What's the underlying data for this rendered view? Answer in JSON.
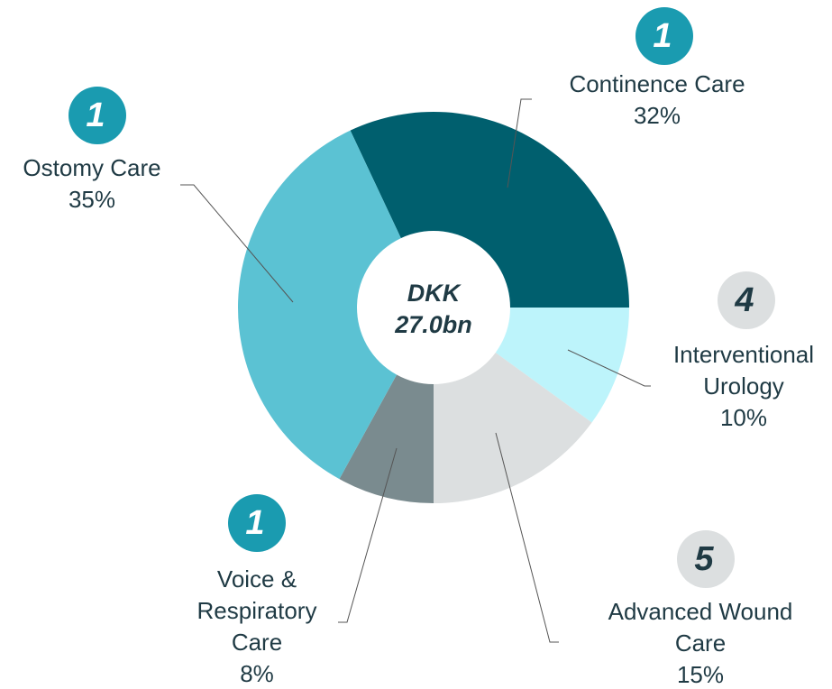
{
  "chart_data": {
    "type": "donut",
    "center_text": [
      "DKK",
      "27.0bn"
    ],
    "categories": [
      "Continence Care",
      "Interventional Urology",
      "Advanced Wound Care",
      "Voice & Respiratory Care",
      "Ostomy Care"
    ],
    "values": [
      32,
      10,
      15,
      8,
      35
    ],
    "value_labels": [
      "32%",
      "10%",
      "15%",
      "8%",
      "35%"
    ],
    "colors": [
      "#005f6e",
      "#bdf4fb",
      "#dcdfe0",
      "#7a8b8f",
      "#5bc2d3"
    ],
    "badges": [
      1,
      4,
      5,
      1,
      1
    ],
    "badge_colors": [
      "#1a9bb0",
      "#dcdfe0",
      "#dcdfe0",
      "#1a9bb0",
      "#1a9bb0"
    ]
  }
}
